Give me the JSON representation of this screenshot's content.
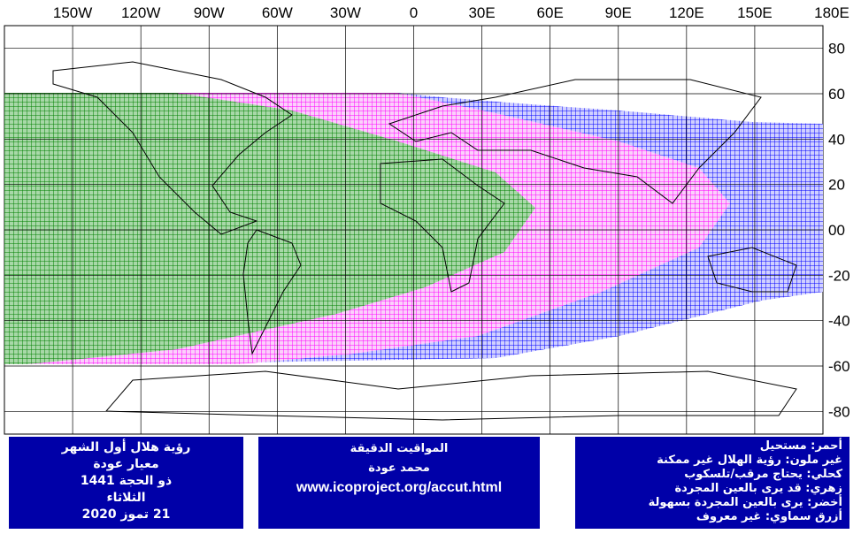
{
  "lon_labels": [
    "150W",
    "120W",
    "90W",
    "60W",
    "30W",
    "0",
    "30E",
    "60E",
    "90E",
    "120E",
    "150E",
    "180E"
  ],
  "lat_labels": [
    "80",
    "60",
    "40",
    "20",
    "00",
    "-20",
    "-40",
    "-60",
    "-80"
  ],
  "left_box": [
    "رؤية هلال أول الشهر",
    "معيار عودة",
    "ذو الحجة 1441",
    "الثلاثاء",
    "21 تموز 2020"
  ],
  "middle_box": [
    "المواقيت الدقيقة",
    "محمد عودة",
    "www.icoproject.org/accut.html"
  ],
  "right_box": [
    "أحمر: مستحيل",
    "غير ملون: رؤية الهلال غير ممكنة",
    "كحلي: يحتاج مرقب/تلسكوب",
    "زهري: قد يرى بالعين المجردة",
    "أخضر: يرى بالعين المجردة بسهولة",
    "أزرق سماوي: غير معروف"
  ]
}
